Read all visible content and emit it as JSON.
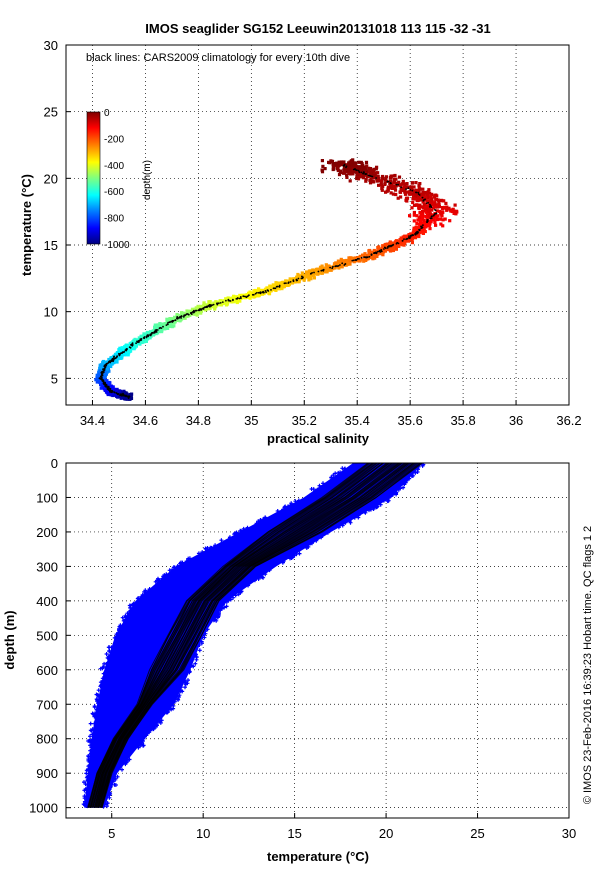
{
  "figure": {
    "title": "IMOS seaglider SG152 Leeuwin20131018 113  115  -32  -31",
    "side_note": "© IMOS 23-Feb-2016 16:39:23 Hobart time. QC flags 1  2"
  },
  "chart_data": [
    {
      "type": "scatter",
      "name": "T-S diagram",
      "xlabel": "practical salinity",
      "ylabel": "temperature (°C)",
      "xlim": [
        34.3,
        36.2
      ],
      "ylim": [
        3,
        30
      ],
      "xticks": [
        34.4,
        34.6,
        34.8,
        35,
        35.2,
        35.4,
        35.6,
        35.8,
        36,
        36.2
      ],
      "yticks": [
        5,
        10,
        15,
        20,
        25,
        30
      ],
      "grid": true,
      "annotation": "black lines: CARS2009 climatology for every 10th dive",
      "colorbar": {
        "label": "depth(m)",
        "ticks": [
          0,
          -200,
          -400,
          -600,
          -800,
          -1000
        ],
        "range": [
          -1000,
          0
        ],
        "colormap": [
          "#00007f",
          "#0000ff",
          "#007fff",
          "#00ffff",
          "#7fff7f",
          "#ffff00",
          "#ff7f00",
          "#ff0000",
          "#7f0000"
        ]
      },
      "profile_path": [
        {
          "depth": 1000,
          "salinity": 34.54,
          "temperature": 3.6
        },
        {
          "depth": 900,
          "salinity": 34.47,
          "temperature": 4.0
        },
        {
          "depth": 800,
          "salinity": 34.43,
          "temperature": 5.0
        },
        {
          "depth": 700,
          "salinity": 34.45,
          "temperature": 6.0
        },
        {
          "depth": 600,
          "salinity": 34.55,
          "temperature": 7.5
        },
        {
          "depth": 500,
          "salinity": 34.72,
          "temperature": 9.5
        },
        {
          "depth": 420,
          "salinity": 34.85,
          "temperature": 10.5
        },
        {
          "depth": 350,
          "salinity": 35.05,
          "temperature": 11.5
        },
        {
          "depth": 280,
          "salinity": 35.25,
          "temperature": 13.0
        },
        {
          "depth": 220,
          "salinity": 35.45,
          "temperature": 14.2
        },
        {
          "depth": 150,
          "salinity": 35.62,
          "temperature": 15.8
        },
        {
          "depth": 100,
          "salinity": 35.7,
          "temperature": 17.5
        },
        {
          "depth": 60,
          "salinity": 35.62,
          "temperature": 19.0
        },
        {
          "depth": 30,
          "salinity": 35.45,
          "temperature": 20.2
        },
        {
          "depth": 0,
          "salinity": 35.35,
          "temperature": 21.0
        }
      ]
    },
    {
      "type": "scatter",
      "name": "temperature profile",
      "xlabel": "temperature (°C)",
      "ylabel": "depth (m)",
      "xlim": [
        2.5,
        30
      ],
      "ylim": [
        0,
        1030
      ],
      "y_reversed": true,
      "xticks": [
        5,
        10,
        15,
        20,
        25,
        30
      ],
      "yticks": [
        0,
        100,
        200,
        300,
        400,
        500,
        600,
        700,
        800,
        900,
        1000
      ],
      "grid": true,
      "series": [
        {
          "role": "observations",
          "color": "#0000ff"
        },
        {
          "role": "climatology",
          "color": "#000000"
        }
      ],
      "climatology_mean": [
        {
          "depth": 0,
          "temperature": 20.5
        },
        {
          "depth": 100,
          "temperature": 18.0
        },
        {
          "depth": 200,
          "temperature": 15.0
        },
        {
          "depth": 300,
          "temperature": 12.0
        },
        {
          "depth": 400,
          "temperature": 10.0
        },
        {
          "depth": 500,
          "temperature": 9.0
        },
        {
          "depth": 600,
          "temperature": 8.0
        },
        {
          "depth": 700,
          "temperature": 6.8
        },
        {
          "depth": 800,
          "temperature": 5.5
        },
        {
          "depth": 900,
          "temperature": 4.6
        },
        {
          "depth": 1000,
          "temperature": 4.1
        }
      ],
      "observation_left_edge": [
        {
          "depth": 0,
          "temperature": 18.2
        },
        {
          "depth": 100,
          "temperature": 15.5
        },
        {
          "depth": 200,
          "temperature": 12.0
        },
        {
          "depth": 300,
          "temperature": 8.5
        },
        {
          "depth": 400,
          "temperature": 6.3
        },
        {
          "depth": 500,
          "temperature": 5.2
        },
        {
          "depth": 600,
          "temperature": 4.6
        },
        {
          "depth": 700,
          "temperature": 4.2
        },
        {
          "depth": 800,
          "temperature": 3.9
        },
        {
          "depth": 900,
          "temperature": 3.7
        },
        {
          "depth": 1000,
          "temperature": 3.5
        }
      ],
      "observation_right_edge": [
        {
          "depth": 0,
          "temperature": 22.0
        },
        {
          "depth": 100,
          "temperature": 20.3
        },
        {
          "depth": 200,
          "temperature": 17.0
        },
        {
          "depth": 300,
          "temperature": 14.0
        },
        {
          "depth": 400,
          "temperature": 11.3
        },
        {
          "depth": 500,
          "temperature": 10.0
        },
        {
          "depth": 600,
          "temperature": 9.3
        },
        {
          "depth": 700,
          "temperature": 8.4
        },
        {
          "depth": 800,
          "temperature": 6.8
        },
        {
          "depth": 900,
          "temperature": 5.3
        },
        {
          "depth": 1000,
          "temperature": 4.6
        }
      ]
    }
  ]
}
